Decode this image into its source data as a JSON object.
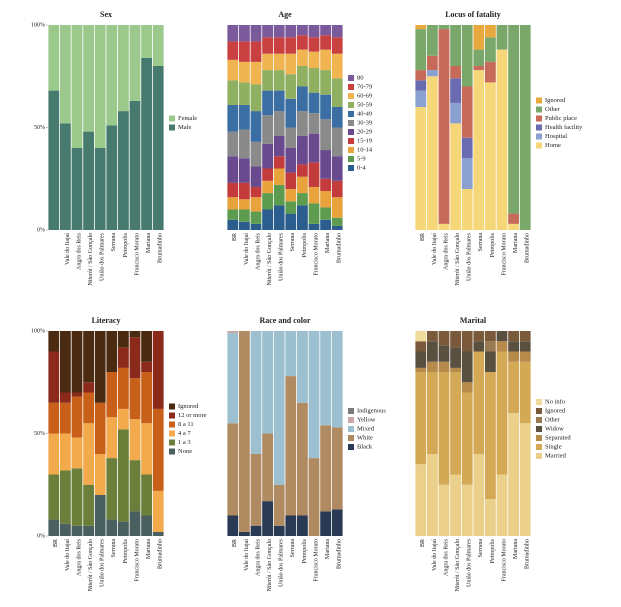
{
  "chart_data": [
    {
      "type": "bar",
      "stacked": true,
      "title": "Sex",
      "legend": "right",
      "ylim": [
        0,
        100
      ],
      "yticks": [
        {
          "value": 0,
          "label": "0%"
        },
        {
          "value": 50,
          "label": "50%"
        },
        {
          "value": 100,
          "label": "100%"
        }
      ],
      "categories": [
        null,
        "Vale do Itajaí",
        "Angra dos Reis",
        "Niterói / São Gonçalo",
        "União dos Palmares",
        "Serrana",
        "Petropolis",
        "Francisco Morato",
        "Mariana",
        "Brumadinho"
      ],
      "series": [
        {
          "name": "Male",
          "color": "#467a6e",
          "values": [
            68,
            52,
            40,
            48,
            40,
            51,
            58,
            63,
            84,
            80
          ]
        },
        {
          "name": "Female",
          "color": "#9bc98c",
          "values": [
            32,
            48,
            60,
            52,
            60,
            49,
            42,
            37,
            16,
            20
          ]
        }
      ]
    },
    {
      "type": "bar",
      "stacked": true,
      "title": "Age",
      "legend": "right",
      "ylim": [
        0,
        100
      ],
      "categories": [
        "BR",
        "Vale do Itajaí",
        "Angra dos Reis",
        "Niterói / São Gonçalo",
        "União dos Palmares",
        "Serrana",
        "Petropolis",
        "Francisco Morato",
        "Mariana",
        "Brumadinho"
      ],
      "series": [
        {
          "name": "0-4",
          "color": "#2b5d8f",
          "values": [
            5,
            4,
            3,
            10,
            12,
            8,
            12,
            3,
            5,
            2
          ]
        },
        {
          "name": "5-9",
          "color": "#5d9b4e",
          "values": [
            5,
            6,
            6,
            8,
            10,
            6,
            6,
            10,
            6,
            4
          ]
        },
        {
          "name": "10-14",
          "color": "#e8a33d",
          "values": [
            6,
            5,
            7,
            6,
            8,
            6,
            8,
            8,
            8,
            10
          ]
        },
        {
          "name": "15-19",
          "color": "#c33b3b",
          "values": [
            7,
            8,
            5,
            6,
            6,
            8,
            6,
            12,
            6,
            8
          ]
        },
        {
          "name": "20-29",
          "color": "#6a4a8f",
          "values": [
            13,
            12,
            10,
            12,
            10,
            12,
            14,
            14,
            14,
            12
          ]
        },
        {
          "name": "30-39",
          "color": "#8a8a8a",
          "values": [
            12,
            14,
            12,
            14,
            12,
            10,
            12,
            10,
            15,
            14
          ]
        },
        {
          "name": "40-49",
          "color": "#3b6fa3",
          "values": [
            13,
            12,
            15,
            12,
            10,
            14,
            12,
            10,
            12,
            10
          ]
        },
        {
          "name": "50-59",
          "color": "#8fb060",
          "values": [
            12,
            11,
            13,
            10,
            10,
            12,
            10,
            12,
            12,
            14
          ]
        },
        {
          "name": "60-69",
          "color": "#f0b450",
          "values": [
            10,
            10,
            11,
            8,
            8,
            10,
            8,
            8,
            10,
            12
          ]
        },
        {
          "name": "70-79",
          "color": "#c84040",
          "values": [
            9,
            10,
            10,
            8,
            8,
            8,
            7,
            7,
            7,
            8
          ]
        },
        {
          "name": "80",
          "color": "#7a5a9a",
          "values": [
            8,
            8,
            8,
            6,
            6,
            6,
            5,
            6,
            5,
            6
          ]
        }
      ]
    },
    {
      "type": "bar",
      "stacked": true,
      "title": "Locus of fatality",
      "legend": "right",
      "ylim": [
        0,
        100
      ],
      "categories": [
        "BR",
        "Vale do Itajaí",
        "Angra dos Reis",
        "Niterói / São Gonçalo",
        "União dos Palmares",
        "Serrana",
        "Petropolis",
        "Francisco Morato",
        "Mariana",
        "Brumadinho"
      ],
      "series": [
        {
          "name": "Home",
          "color": "#f5d77a",
          "values": [
            60,
            75,
            3,
            52,
            20,
            78,
            72,
            88,
            3,
            0
          ]
        },
        {
          "name": "Hospital",
          "color": "#8aa0d0",
          "values": [
            8,
            3,
            0,
            10,
            15,
            0,
            0,
            0,
            0,
            0
          ]
        },
        {
          "name": "Health facility",
          "color": "#6a6ab0",
          "values": [
            5,
            0,
            0,
            12,
            10,
            0,
            0,
            0,
            0,
            0
          ]
        },
        {
          "name": "Public place",
          "color": "#c86a5a",
          "values": [
            5,
            7,
            95,
            6,
            25,
            2,
            10,
            0,
            5,
            0
          ]
        },
        {
          "name": "Other",
          "color": "#7aa86a",
          "values": [
            20,
            15,
            2,
            20,
            30,
            8,
            12,
            12,
            92,
            100
          ]
        },
        {
          "name": "Ignored",
          "color": "#e8a83d",
          "values": [
            2,
            0,
            0,
            0,
            0,
            12,
            6,
            0,
            0,
            0
          ]
        }
      ]
    },
    {
      "type": "bar",
      "stacked": true,
      "title": "Literacy",
      "legend": "right",
      "ylim": [
        0,
        100
      ],
      "yticks": [
        {
          "value": 0,
          "label": "0%"
        },
        {
          "value": 50,
          "label": "50%"
        },
        {
          "value": 100,
          "label": "100%"
        }
      ],
      "categories": [
        "BR",
        "Vale do Itajaí",
        "Angra dos Reis",
        "Niterói / São Gonçalo",
        "União dos Palmares",
        "Serrana",
        "Petropolis",
        "Francisco Morato",
        "Mariana",
        "Brumadinho"
      ],
      "series": [
        {
          "name": "None",
          "color": "#4a5f5f",
          "values": [
            8,
            6,
            5,
            5,
            20,
            8,
            7,
            12,
            10,
            2
          ]
        },
        {
          "name": "1 a 3",
          "color": "#6b7f3a",
          "values": [
            22,
            26,
            28,
            20,
            0,
            30,
            45,
            25,
            20,
            0
          ]
        },
        {
          "name": "4 a 7",
          "color": "#f2aa4c",
          "values": [
            20,
            18,
            15,
            30,
            20,
            20,
            10,
            20,
            25,
            20
          ]
        },
        {
          "name": "8 a 11",
          "color": "#c8601a",
          "values": [
            15,
            15,
            20,
            15,
            25,
            22,
            20,
            20,
            25,
            40
          ]
        },
        {
          "name": "12 or more",
          "color": "#8b2a1a",
          "values": [
            25,
            5,
            2,
            5,
            0,
            0,
            10,
            20,
            5,
            38
          ]
        },
        {
          "name": "Ignored",
          "color": "#4a2a10",
          "values": [
            10,
            30,
            30,
            25,
            35,
            20,
            8,
            3,
            15,
            0
          ]
        }
      ]
    },
    {
      "type": "bar",
      "stacked": true,
      "title": "Race and color",
      "legend": "right",
      "ylim": [
        0,
        100
      ],
      "categories": [
        "BR",
        "Vale do Itajaí",
        "Angra dos Reis",
        "Niterói / São Gonçalo",
        "União dos Palmares",
        "Serrana",
        "Petropolis",
        "Francisco Morato",
        "Mariana",
        "Brumadinho"
      ],
      "series": [
        {
          "name": "Black",
          "color": "#2a3a55",
          "values": [
            10,
            2,
            5,
            17,
            5,
            10,
            10,
            0,
            12,
            13
          ]
        },
        {
          "name": "White",
          "color": "#b08a60",
          "values": [
            45,
            98,
            35,
            33,
            20,
            68,
            55,
            38,
            42,
            40
          ]
        },
        {
          "name": "Mixed",
          "color": "#9cc0d0",
          "values": [
            44,
            0,
            60,
            50,
            75,
            22,
            35,
            62,
            46,
            47
          ]
        },
        {
          "name": "Yellow",
          "color": "#c8a8a8",
          "values": [
            1,
            0,
            0,
            0,
            0,
            0,
            0,
            0,
            0,
            0
          ]
        },
        {
          "name": "Indigenous",
          "color": "#7a7a7a",
          "values": [
            0,
            0,
            0,
            0,
            0,
            0,
            0,
            0,
            0,
            0
          ]
        }
      ]
    },
    {
      "type": "bar",
      "stacked": true,
      "title": "Marital",
      "legend": "right",
      "ylim": [
        0,
        100
      ],
      "categories": [
        "BR",
        "Vale do Itajaí",
        "Angra dos Reis",
        "Niterói / São Gonçalo",
        "União dos Palmares",
        "Serrana",
        "Petropolis",
        "Francisco Morato",
        "Mariana",
        "Brumadinho"
      ],
      "series": [
        {
          "name": "Married",
          "color": "#ead08a",
          "values": [
            35,
            40,
            25,
            30,
            25,
            40,
            18,
            30,
            60,
            55
          ]
        },
        {
          "name": "Single",
          "color": "#d4a955",
          "values": [
            45,
            40,
            55,
            50,
            45,
            50,
            62,
            60,
            25,
            30
          ]
        },
        {
          "name": "Separated",
          "color": "#b58a4a",
          "values": [
            2,
            5,
            5,
            2,
            5,
            0,
            0,
            5,
            5,
            5
          ]
        },
        {
          "name": "Widow",
          "color": "#5a5040",
          "values": [
            8,
            10,
            8,
            10,
            15,
            5,
            10,
            5,
            5,
            5
          ]
        },
        {
          "name": "Other",
          "color": "#9a7a50",
          "values": [
            0,
            0,
            0,
            0,
            0,
            0,
            5,
            0,
            0,
            0
          ]
        },
        {
          "name": "Ignored",
          "color": "#7a5a3a",
          "values": [
            5,
            5,
            7,
            8,
            10,
            5,
            5,
            0,
            5,
            5
          ]
        },
        {
          "name": "No info",
          "color": "#f0dc9a",
          "values": [
            5,
            0,
            0,
            0,
            0,
            0,
            0,
            0,
            0,
            0
          ]
        }
      ]
    }
  ]
}
